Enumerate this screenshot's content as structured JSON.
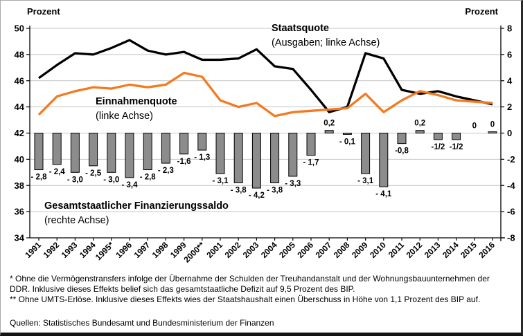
{
  "chart_data": {
    "type": "combo-bar-line",
    "categories": [
      "1991",
      "1992",
      "1993",
      "1994",
      "1995",
      "1996",
      "1997",
      "1998",
      "1999",
      "2000",
      "2001",
      "2002",
      "2003",
      "2004",
      "2005",
      "2006",
      "2007",
      "2008",
      "2009",
      "2010",
      "2011",
      "2012",
      "2013",
      "2014",
      "2015",
      "2016"
    ],
    "x_tick_labels": [
      "1991",
      "1992",
      "1993",
      "1994",
      "1995*",
      "1996",
      "1997",
      "1998",
      "1999",
      "2000**",
      "2001",
      "2002",
      "2003",
      "2004",
      "2005",
      "2006",
      "2007",
      "2008",
      "2009",
      "2010",
      "2011",
      "2012",
      "2013",
      "2014",
      "2015",
      "2016"
    ],
    "left_axis": {
      "unit": "Prozent",
      "min": 34,
      "max": 50,
      "ticks": [
        50,
        48,
        46,
        44,
        42,
        40,
        38,
        36,
        34
      ]
    },
    "right_axis": {
      "unit": "Prozent",
      "min": -8,
      "max": 8,
      "ticks": [
        8,
        6,
        4,
        2,
        0,
        -2,
        -4,
        -6,
        -8
      ]
    },
    "grid": true,
    "series": [
      {
        "name": "Staatsquote",
        "annotation_title": "Staatsquote",
        "annotation_subtitle": "(Ausgaben; linke Achse)",
        "type": "line",
        "axis": "left",
        "color": "#000000",
        "values": [
          46.2,
          47.2,
          48.1,
          48.0,
          48.5,
          49.1,
          48.3,
          48.0,
          48.2,
          47.6,
          47.6,
          47.7,
          48.4,
          47.1,
          46.9,
          45.3,
          43.6,
          44.0,
          48.1,
          47.7,
          45.3,
          45.0,
          45.2,
          44.8,
          44.5,
          44.2
        ]
      },
      {
        "name": "Einnahmenquote",
        "annotation_title": "Einnahmenquote",
        "annotation_subtitle": "(linke Achse)",
        "type": "line",
        "axis": "left",
        "color": "#f5791e",
        "values": [
          43.4,
          44.8,
          45.2,
          45.5,
          45.4,
          45.7,
          45.5,
          45.7,
          46.6,
          46.3,
          44.5,
          44.0,
          44.3,
          43.3,
          43.6,
          43.7,
          43.8,
          43.9,
          45.0,
          43.6,
          44.5,
          45.2,
          44.9,
          44.5,
          44.4,
          44.3
        ]
      },
      {
        "name": "Gesamtstaatlicher Finanzierungssaldo",
        "annotation_title": "Gesamtstaatlicher Finanzierungssaldo",
        "annotation_subtitle": "(rechte Achse)",
        "type": "bar",
        "axis": "right",
        "color": "#8c8c8c",
        "values": [
          -2.8,
          -2.4,
          -3.0,
          -2.5,
          -3.0,
          -3.4,
          -2.8,
          -2.3,
          -1.6,
          -1.3,
          -3.1,
          -3.8,
          -4.2,
          -3.8,
          -3.3,
          -1.7,
          0.2,
          -0.1,
          -3.1,
          -4.1,
          -0.8,
          0.2,
          -0.5,
          -0.5,
          0,
          0.1
        ],
        "value_labels": [
          "- 2,8",
          "- 2,4",
          "- 3,0",
          "- 2,5",
          "- 3,0",
          "- 3,4",
          "- 2,8",
          "- 2,3",
          "-1,6",
          "- 1,3",
          "- 3,1",
          "- 3,8",
          "- 4,2",
          "- 3,8",
          "- 3,3",
          "- 1,7",
          "0,2",
          "- 0,1",
          "- 3,1",
          "- 4,1",
          "-0,8",
          "0,2",
          "-1/2",
          "-1/2",
          "0",
          "0"
        ]
      }
    ]
  },
  "colors": {
    "bar_fill": "#8c8c8c",
    "bar_stroke": "#000000",
    "line_expenditure": "#000000",
    "line_revenue": "#f5791e",
    "grid": "#c4c4c4",
    "axis": "#000000"
  },
  "footnotes": {
    "line1": "* Ohne die Vermögenstransfers infolge der Übernahme der Schulden der Treuhandanstalt und der Wohnungsbauunternehmen der",
    "line2": "DDR. Inklusive dieses Effekts belief sich das gesamtstaatliche Defizit auf 9,5 Prozent des BIP.",
    "line3": "** Ohne UMTS-Erlöse. Inklusive dieses Effekts wies der Staatshaushalt einen Überschuss in Höhe von 1,1 Prozent des BIP auf."
  },
  "source": "Quellen: Statistisches Bundesamt und Bundesministerium der Finanzen"
}
